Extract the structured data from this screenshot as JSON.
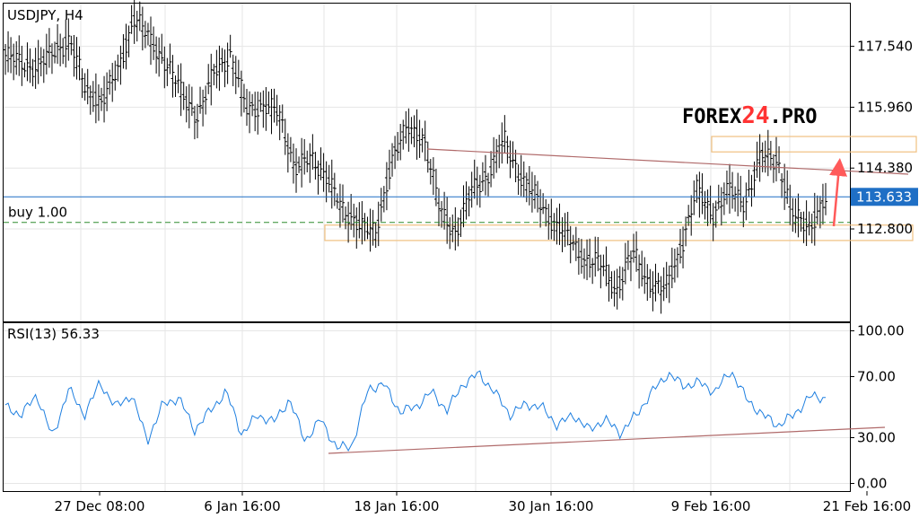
{
  "brand": {
    "prefix": "FOREX",
    "number": "24",
    "suffix": ".PRO",
    "accent": "#ff3333"
  },
  "position_label": "buy 1.00",
  "chart_data": [
    {
      "type": "ohlc",
      "title": "USDJPY, H4",
      "x_tick_labels": [
        "27 Dec 08:00",
        "6 Jan 16:00",
        "18 Jan 16:00",
        "30 Jan 16:00",
        "9 Feb 16:00",
        "21 Feb 16:00"
      ],
      "y_tick_labels": [
        "117.540",
        "115.960",
        "114.380",
        "112.800"
      ],
      "y_ticks": [
        117.54,
        115.96,
        114.38,
        112.8
      ],
      "ylim": [
        110.4,
        118.65
      ],
      "current_price": 113.633,
      "current_price_label": "113.633",
      "buy_level": 112.97,
      "grid": true,
      "colors": {
        "bars": "#000000",
        "price_line": "#1f6fc5",
        "price_label_bg": "#1f6fc5",
        "trendline": "#b06a6a",
        "zone": "#f0c080",
        "arrow": "#ff5a5a",
        "buy_line": "#2e8b2e"
      },
      "close_path": [
        117.3,
        117.1,
        117.0,
        117.4,
        117.7,
        116.4,
        116.1,
        116.9,
        118.3,
        117.7,
        117.1,
        116.3,
        115.7,
        116.9,
        117.3,
        115.9,
        116.0,
        115.8,
        114.4,
        114.6,
        114.2,
        113.2,
        113.0,
        112.6,
        114.6,
        115.4,
        115.2,
        113.3,
        112.7,
        113.8,
        114.2,
        115.1,
        114.2,
        113.6,
        113.0,
        112.6,
        112.0,
        111.9,
        111.2,
        112.2,
        111.4,
        111.2,
        112.3,
        113.8,
        113.2,
        113.8,
        113.5,
        114.7,
        114.6,
        113.1,
        112.9,
        113.5
      ],
      "zones": [
        {
          "x_start": "18 Jan 16:00",
          "y_low": 112.5,
          "y_high": 112.9
        },
        {
          "x_start": "9 Feb 16:00",
          "y_low": 114.8,
          "y_high": 115.2
        }
      ]
    },
    {
      "type": "line",
      "title": "RSI(13) 56.33",
      "y_tick_labels": [
        "100.00",
        "70.00",
        "30.00",
        "0.00"
      ],
      "y_ticks": [
        100,
        70,
        30,
        0
      ],
      "ylim": [
        -5,
        105
      ],
      "grid": true,
      "line_color": "#1e7fe0",
      "path": [
        50,
        45,
        58,
        30,
        62,
        45,
        66,
        50,
        58,
        28,
        52,
        56,
        35,
        48,
        60,
        32,
        45,
        40,
        55,
        28,
        42,
        23,
        25,
        62,
        65,
        47,
        50,
        60,
        48,
        65,
        72,
        60,
        45,
        52,
        50,
        38,
        45,
        35,
        42,
        33,
        45,
        60,
        72,
        64,
        66,
        60,
        74,
        55,
        45,
        38,
        45,
        57,
        56
      ]
    }
  ]
}
